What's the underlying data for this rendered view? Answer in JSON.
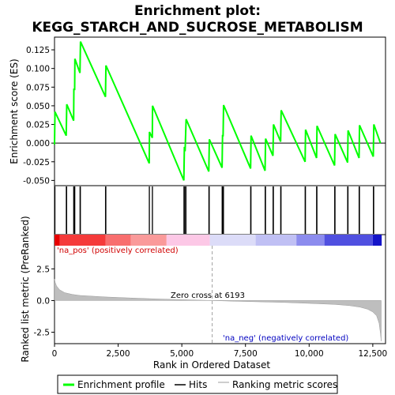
{
  "chart_data": {
    "type": "line",
    "title_line1": "Enrichment plot:",
    "title_line2": "KEGG_STARCH_AND_SUCROSE_METABOLISM",
    "colors": {
      "es_line": "#00ff00",
      "hits": "#000000",
      "metric": "#bebebe",
      "zero_cross": "#a0a0a0",
      "pos_label": "#d00000",
      "neg_label": "#0000c0"
    },
    "es_panel": {
      "ylabel": "Enrichment score (ES)",
      "ylim": [
        -0.057,
        0.142
      ],
      "yticks": [
        -0.05,
        -0.025,
        0.0,
        0.025,
        0.05,
        0.075,
        0.1,
        0.125
      ],
      "ytick_labels": [
        "-0.050",
        "-0.025",
        "0.000",
        "0.025",
        "0.050",
        "0.075",
        "0.100",
        "0.125"
      ],
      "points": [
        [
          0,
          -0.002
        ],
        [
          18,
          0.042
        ],
        [
          460,
          0.01
        ],
        [
          480,
          0.052
        ],
        [
          750,
          0.03
        ],
        [
          760,
          0.072
        ],
        [
          790,
          0.072
        ],
        [
          800,
          0.113
        ],
        [
          1000,
          0.094
        ],
        [
          1020,
          0.136
        ],
        [
          2000,
          0.062
        ],
        [
          2020,
          0.104
        ],
        [
          3720,
          -0.027
        ],
        [
          3730,
          0.015
        ],
        [
          3840,
          0.007
        ],
        [
          3850,
          0.05
        ],
        [
          5080,
          -0.05
        ],
        [
          5100,
          -0.005
        ],
        [
          5130,
          -0.011
        ],
        [
          5170,
          0.032
        ],
        [
          6060,
          -0.038
        ],
        [
          6080,
          0.005
        ],
        [
          6580,
          -0.033
        ],
        [
          6600,
          0.01
        ],
        [
          6620,
          0.01
        ],
        [
          6640,
          0.051
        ],
        [
          7700,
          -0.034
        ],
        [
          7720,
          0.01
        ],
        [
          8270,
          -0.037
        ],
        [
          8290,
          0.006
        ],
        [
          8580,
          -0.017
        ],
        [
          8600,
          0.025
        ],
        [
          8880,
          0.002
        ],
        [
          8900,
          0.044
        ],
        [
          9840,
          -0.025
        ],
        [
          9860,
          0.018
        ],
        [
          10290,
          -0.02
        ],
        [
          10310,
          0.023
        ],
        [
          11000,
          -0.03
        ],
        [
          11020,
          0.012
        ],
        [
          11510,
          -0.026
        ],
        [
          11530,
          0.017
        ],
        [
          11960,
          -0.02
        ],
        [
          11980,
          0.024
        ],
        [
          12520,
          -0.018
        ],
        [
          12540,
          0.025
        ],
        [
          12800,
          0.0
        ]
      ]
    },
    "hits": [
      20,
      460,
      480,
      750,
      760,
      790,
      800,
      1000,
      1020,
      2000,
      2020,
      3720,
      3730,
      3840,
      3850,
      5080,
      5100,
      5130,
      5170,
      6060,
      6080,
      6580,
      6600,
      6620,
      6640,
      7700,
      7720,
      8270,
      8290,
      8580,
      8600,
      8880,
      8900,
      9840,
      9860,
      10290,
      10310,
      11000,
      11020,
      11510,
      11530,
      11960,
      11980,
      12520,
      12540
    ],
    "color_bar": [
      {
        "from": 0,
        "to": 200,
        "color": "#e60000"
      },
      {
        "from": 200,
        "to": 2000,
        "color": "#f53a3a"
      },
      {
        "from": 2000,
        "to": 3000,
        "color": "#f86e6e"
      },
      {
        "from": 3000,
        "to": 4400,
        "color": "#fa9a9a"
      },
      {
        "from": 4400,
        "to": 6100,
        "color": "#fcc8e6"
      },
      {
        "from": 6100,
        "to": 7900,
        "color": "#dcdcf8"
      },
      {
        "from": 7900,
        "to": 9500,
        "color": "#c0c0f4"
      },
      {
        "from": 9500,
        "to": 10600,
        "color": "#8c8cee"
      },
      {
        "from": 10600,
        "to": 12500,
        "color": "#5050e0"
      },
      {
        "from": 12500,
        "to": 12850,
        "color": "#1414c8"
      }
    ],
    "metric_panel": {
      "ylabel": "Ranked list metric (PreRanked)",
      "ylim": [
        -3.4,
        5.2
      ],
      "yticks": [
        -2.5,
        0.0,
        2.5
      ],
      "ytick_labels": [
        "-2.5",
        "0.0",
        "2.5"
      ],
      "curve": [
        [
          0,
          1.7
        ],
        [
          30,
          1.4
        ],
        [
          80,
          1.15
        ],
        [
          200,
          0.85
        ],
        [
          400,
          0.62
        ],
        [
          700,
          0.48
        ],
        [
          1000,
          0.4
        ],
        [
          2000,
          0.28
        ],
        [
          3000,
          0.2
        ],
        [
          4000,
          0.13
        ],
        [
          5000,
          0.07
        ],
        [
          6193,
          0.0
        ],
        [
          7000,
          -0.05
        ],
        [
          8000,
          -0.1
        ],
        [
          9000,
          -0.15
        ],
        [
          10000,
          -0.22
        ],
        [
          11000,
          -0.3
        ],
        [
          11600,
          -0.4
        ],
        [
          12000,
          -0.52
        ],
        [
          12300,
          -0.68
        ],
        [
          12500,
          -0.9
        ],
        [
          12650,
          -1.2
        ],
        [
          12750,
          -1.8
        ],
        [
          12800,
          -2.6
        ],
        [
          12830,
          -3.2
        ]
      ],
      "zero_cross_rank": 6193,
      "zero_cross_label": "Zero cross at 6193",
      "pos_label": "'na_pos' (positively correlated)",
      "neg_label": "'na_neg' (negatively correlated)"
    },
    "x_axis": {
      "xlabel": "Rank in Ordered Dataset",
      "xlim": [
        0,
        13000
      ],
      "xticks": [
        0,
        2500,
        5000,
        7500,
        10000,
        12500
      ],
      "xtick_labels": [
        "0",
        "2,500",
        "5,000",
        "7,500",
        "10,000",
        "12,500"
      ]
    },
    "legend": {
      "placement": "bottom",
      "entries": [
        {
          "label": "Enrichment profile",
          "kind": "es"
        },
        {
          "label": "Hits",
          "kind": "hits"
        },
        {
          "label": "Ranking metric scores",
          "kind": "metric"
        }
      ]
    }
  }
}
